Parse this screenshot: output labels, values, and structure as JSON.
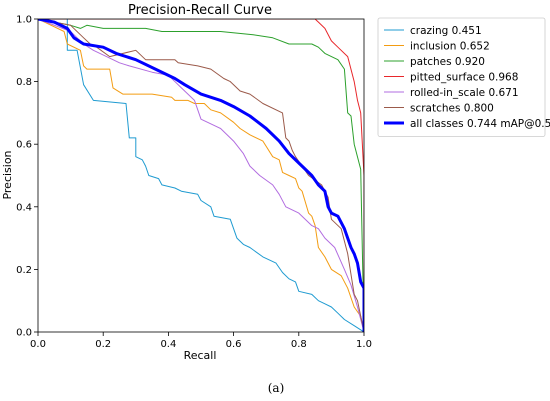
{
  "chart_data": {
    "type": "line",
    "title": "Precision-Recall Curve",
    "xlabel": "Recall",
    "ylabel": "Precision",
    "xlim": [
      0,
      1
    ],
    "ylim": [
      0,
      1
    ],
    "xticks": [
      "0.0",
      "0.2",
      "0.4",
      "0.6",
      "0.8",
      "1.0"
    ],
    "yticks": [
      "0.0",
      "0.2",
      "0.4",
      "0.6",
      "0.8",
      "1.0"
    ],
    "legend_position": "outside-right-top",
    "grid": false,
    "series": [
      {
        "name": "crazing 0.451",
        "color": "#1f9bd1",
        "width": 1,
        "points": [
          [
            0,
            1
          ],
          [
            0.09,
            1
          ],
          [
            0.09,
            0.9
          ],
          [
            0.12,
            0.9
          ],
          [
            0.14,
            0.79
          ],
          [
            0.17,
            0.74
          ],
          [
            0.27,
            0.73
          ],
          [
            0.28,
            0.62
          ],
          [
            0.3,
            0.62
          ],
          [
            0.3,
            0.56
          ],
          [
            0.32,
            0.55
          ],
          [
            0.33,
            0.53
          ],
          [
            0.34,
            0.5
          ],
          [
            0.37,
            0.49
          ],
          [
            0.38,
            0.47
          ],
          [
            0.42,
            0.46
          ],
          [
            0.44,
            0.45
          ],
          [
            0.49,
            0.44
          ],
          [
            0.5,
            0.42
          ],
          [
            0.53,
            0.4
          ],
          [
            0.54,
            0.37
          ],
          [
            0.59,
            0.36
          ],
          [
            0.6,
            0.33
          ],
          [
            0.61,
            0.3
          ],
          [
            0.63,
            0.28
          ],
          [
            0.65,
            0.27
          ],
          [
            0.69,
            0.24
          ],
          [
            0.73,
            0.22
          ],
          [
            0.75,
            0.19
          ],
          [
            0.77,
            0.17
          ],
          [
            0.79,
            0.16
          ],
          [
            0.8,
            0.13
          ],
          [
            0.84,
            0.12
          ],
          [
            0.86,
            0.1
          ],
          [
            0.88,
            0.09
          ],
          [
            0.9,
            0.08
          ],
          [
            0.92,
            0.06
          ],
          [
            0.94,
            0.04
          ],
          [
            0.97,
            0.02
          ],
          [
            1,
            0
          ]
        ]
      },
      {
        "name": "inclusion 0.652",
        "color": "#f39c12",
        "width": 1,
        "points": [
          [
            0,
            1
          ],
          [
            0.08,
            0.96
          ],
          [
            0.09,
            0.92
          ],
          [
            0.13,
            0.9
          ],
          [
            0.14,
            0.85
          ],
          [
            0.15,
            0.84
          ],
          [
            0.22,
            0.84
          ],
          [
            0.23,
            0.78
          ],
          [
            0.26,
            0.76
          ],
          [
            0.35,
            0.76
          ],
          [
            0.41,
            0.75
          ],
          [
            0.42,
            0.74
          ],
          [
            0.46,
            0.74
          ],
          [
            0.48,
            0.73
          ],
          [
            0.51,
            0.73
          ],
          [
            0.53,
            0.71
          ],
          [
            0.56,
            0.7
          ],
          [
            0.6,
            0.67
          ],
          [
            0.62,
            0.65
          ],
          [
            0.65,
            0.63
          ],
          [
            0.69,
            0.61
          ],
          [
            0.72,
            0.56
          ],
          [
            0.74,
            0.55
          ],
          [
            0.75,
            0.51
          ],
          [
            0.77,
            0.5
          ],
          [
            0.79,
            0.49
          ],
          [
            0.8,
            0.46
          ],
          [
            0.81,
            0.45
          ],
          [
            0.83,
            0.38
          ],
          [
            0.84,
            0.37
          ],
          [
            0.85,
            0.34
          ],
          [
            0.86,
            0.27
          ],
          [
            0.88,
            0.24
          ],
          [
            0.9,
            0.2
          ],
          [
            0.93,
            0.18
          ],
          [
            0.95,
            0.14
          ],
          [
            0.97,
            0.08
          ],
          [
            0.99,
            0.05
          ],
          [
            1,
            0
          ]
        ]
      },
      {
        "name": "patches 0.920",
        "color": "#2ca02c",
        "width": 1,
        "points": [
          [
            0,
            1
          ],
          [
            0.1,
            0.98
          ],
          [
            0.13,
            0.97
          ],
          [
            0.15,
            0.98
          ],
          [
            0.2,
            0.97
          ],
          [
            0.33,
            0.97
          ],
          [
            0.38,
            0.96
          ],
          [
            0.56,
            0.96
          ],
          [
            0.66,
            0.95
          ],
          [
            0.72,
            0.94
          ],
          [
            0.77,
            0.92
          ],
          [
            0.84,
            0.92
          ],
          [
            0.86,
            0.91
          ],
          [
            0.88,
            0.89
          ],
          [
            0.9,
            0.88
          ],
          [
            0.92,
            0.87
          ],
          [
            0.94,
            0.84
          ],
          [
            0.95,
            0.7
          ],
          [
            0.96,
            0.69
          ],
          [
            0.97,
            0.6
          ],
          [
            0.99,
            0.52
          ],
          [
            1,
            0
          ]
        ]
      },
      {
        "name": "pitted_surface 0.968",
        "color": "#e8272b",
        "width": 1,
        "points": [
          [
            0,
            1
          ],
          [
            0.85,
            1
          ],
          [
            0.86,
            0.99
          ],
          [
            0.88,
            0.97
          ],
          [
            0.9,
            0.93
          ],
          [
            0.92,
            0.91
          ],
          [
            0.95,
            0.88
          ],
          [
            0.97,
            0.8
          ],
          [
            0.98,
            0.74
          ],
          [
            0.99,
            0.7
          ],
          [
            1,
            0.5
          ],
          [
            1,
            0
          ]
        ]
      },
      {
        "name": "rolled-in_scale 0.671",
        "color": "#b26de0",
        "width": 1,
        "points": [
          [
            0,
            1
          ],
          [
            0.1,
            0.96
          ],
          [
            0.12,
            0.94
          ],
          [
            0.14,
            0.92
          ],
          [
            0.17,
            0.9
          ],
          [
            0.21,
            0.88
          ],
          [
            0.25,
            0.86
          ],
          [
            0.28,
            0.85
          ],
          [
            0.35,
            0.83
          ],
          [
            0.4,
            0.82
          ],
          [
            0.44,
            0.78
          ],
          [
            0.48,
            0.74
          ],
          [
            0.5,
            0.68
          ],
          [
            0.56,
            0.65
          ],
          [
            0.6,
            0.61
          ],
          [
            0.63,
            0.57
          ],
          [
            0.65,
            0.53
          ],
          [
            0.68,
            0.5
          ],
          [
            0.72,
            0.47
          ],
          [
            0.74,
            0.44
          ],
          [
            0.76,
            0.4
          ],
          [
            0.8,
            0.38
          ],
          [
            0.84,
            0.34
          ],
          [
            0.86,
            0.33
          ],
          [
            0.88,
            0.3
          ],
          [
            0.91,
            0.27
          ],
          [
            0.94,
            0.2
          ],
          [
            0.96,
            0.15
          ],
          [
            0.98,
            0.08
          ],
          [
            1,
            0
          ]
        ]
      },
      {
        "name": "scratches 0.800",
        "color": "#9b5a4a",
        "width": 1,
        "points": [
          [
            0,
            1
          ],
          [
            0.1,
            0.98
          ],
          [
            0.14,
            0.94
          ],
          [
            0.16,
            0.92
          ],
          [
            0.18,
            0.91
          ],
          [
            0.22,
            0.88
          ],
          [
            0.3,
            0.9
          ],
          [
            0.33,
            0.87
          ],
          [
            0.42,
            0.87
          ],
          [
            0.43,
            0.86
          ],
          [
            0.49,
            0.85
          ],
          [
            0.53,
            0.84
          ],
          [
            0.57,
            0.81
          ],
          [
            0.59,
            0.8
          ],
          [
            0.62,
            0.77
          ],
          [
            0.65,
            0.76
          ],
          [
            0.69,
            0.73
          ],
          [
            0.75,
            0.7
          ],
          [
            0.76,
            0.62
          ],
          [
            0.77,
            0.61
          ],
          [
            0.78,
            0.58
          ],
          [
            0.79,
            0.56
          ],
          [
            0.81,
            0.53
          ],
          [
            0.83,
            0.5
          ],
          [
            0.87,
            0.47
          ],
          [
            0.89,
            0.43
          ],
          [
            0.9,
            0.36
          ],
          [
            0.93,
            0.33
          ],
          [
            0.95,
            0.25
          ],
          [
            0.97,
            0.12
          ],
          [
            0.98,
            0.1
          ],
          [
            1,
            0
          ]
        ]
      },
      {
        "name": "all classes 0.744 mAP@0.5",
        "color": "#0000ff",
        "width": 3,
        "points": [
          [
            0,
            1
          ],
          [
            0.05,
            0.99
          ],
          [
            0.09,
            0.97
          ],
          [
            0.11,
            0.94
          ],
          [
            0.14,
            0.92
          ],
          [
            0.2,
            0.91
          ],
          [
            0.24,
            0.89
          ],
          [
            0.3,
            0.87
          ],
          [
            0.36,
            0.84
          ],
          [
            0.42,
            0.81
          ],
          [
            0.45,
            0.79
          ],
          [
            0.5,
            0.76
          ],
          [
            0.56,
            0.74
          ],
          [
            0.6,
            0.72
          ],
          [
            0.65,
            0.69
          ],
          [
            0.7,
            0.65
          ],
          [
            0.74,
            0.61
          ],
          [
            0.77,
            0.57
          ],
          [
            0.8,
            0.54
          ],
          [
            0.84,
            0.5
          ],
          [
            0.86,
            0.47
          ],
          [
            0.88,
            0.45
          ],
          [
            0.89,
            0.4
          ],
          [
            0.9,
            0.38
          ],
          [
            0.92,
            0.37
          ],
          [
            0.94,
            0.33
          ],
          [
            0.95,
            0.3
          ],
          [
            0.96,
            0.27
          ],
          [
            0.97,
            0.25
          ],
          [
            0.98,
            0.22
          ],
          [
            0.99,
            0.16
          ],
          [
            1,
            0.14
          ],
          [
            1,
            0
          ]
        ]
      }
    ]
  },
  "caption": "(a)"
}
